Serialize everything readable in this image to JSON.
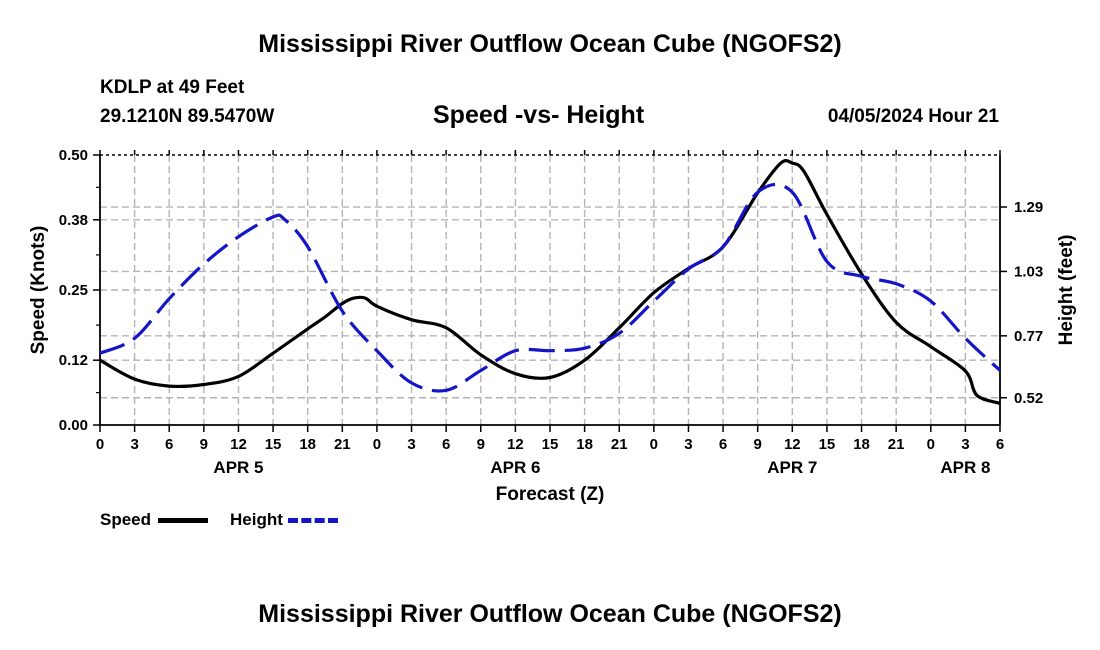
{
  "title": "Mississippi River Outflow Ocean Cube (NGOFS2)",
  "footer_title": "Mississippi River Outflow Ocean Cube (NGOFS2)",
  "station": {
    "name": "KDLP at 49 Feet",
    "coords": "29.1210N  89.5470W"
  },
  "subtitle": "Speed -vs- Height",
  "timestamp": "04/05/2024 Hour 21",
  "colors": {
    "speed": "#000000",
    "height": "#1515c8",
    "grid": "#b4b4b4"
  },
  "legend": {
    "speed_label": "Speed",
    "height_label": "Height"
  },
  "chart_data": {
    "type": "line",
    "title": "Speed -vs- Height",
    "xlabel": "Forecast (Z)",
    "ylabel": "Speed (Knots)",
    "y2label": "Height (feet)",
    "xlim": [
      0,
      78
    ],
    "ylim": [
      0,
      0.5
    ],
    "y2lim": [
      0.41,
      1.5
    ],
    "x_ticks": [
      0,
      3,
      6,
      9,
      12,
      15,
      18,
      21,
      24,
      27,
      30,
      33,
      36,
      39,
      42,
      45,
      48,
      51,
      54,
      57,
      60,
      63,
      66,
      69,
      72,
      75,
      78
    ],
    "x_tick_labels": [
      "0",
      "3",
      "6",
      "9",
      "12",
      "15",
      "18",
      "21",
      "0",
      "3",
      "6",
      "9",
      "12",
      "15",
      "18",
      "21",
      "0",
      "3",
      "6",
      "9",
      "12",
      "15",
      "18",
      "21",
      "0",
      "3",
      "6"
    ],
    "day_labels": [
      {
        "label": "APR 5",
        "x": 12
      },
      {
        "label": "APR 6",
        "x": 36
      },
      {
        "label": "APR 7",
        "x": 60
      },
      {
        "label": "APR 8",
        "x": 75
      }
    ],
    "y_ticks": [
      0.0,
      0.12,
      0.25,
      0.38,
      0.5
    ],
    "y_tick_labels": [
      "0.00",
      "0.12",
      "0.25",
      "0.38",
      "0.50"
    ],
    "y2_ticks": [
      0.52,
      0.77,
      1.03,
      1.29
    ],
    "y2_tick_labels": [
      "0.52",
      "0.77",
      "1.03",
      "1.29"
    ],
    "grid": true,
    "series": [
      {
        "name": "Speed",
        "axis": "left",
        "style": "solid",
        "x": [
          0,
          3,
          6,
          9,
          12,
          15,
          18,
          19.5,
          21,
          22,
          23,
          24,
          27,
          30,
          33,
          36,
          39,
          42,
          45,
          48,
          51,
          54,
          57,
          59,
          60,
          61,
          63,
          66,
          69,
          72,
          75,
          76,
          78
        ],
        "values": [
          0.12,
          0.085,
          0.072,
          0.075,
          0.09,
          0.133,
          0.178,
          0.2,
          0.225,
          0.235,
          0.235,
          0.22,
          0.195,
          0.18,
          0.13,
          0.095,
          0.088,
          0.12,
          0.18,
          0.245,
          0.29,
          0.33,
          0.43,
          0.485,
          0.485,
          0.47,
          0.39,
          0.28,
          0.19,
          0.145,
          0.1,
          0.055,
          0.04
        ]
      },
      {
        "name": "Height",
        "axis": "right",
        "style": "dashed",
        "x": [
          0,
          3,
          6,
          9,
          12,
          15,
          16,
          18,
          21,
          24,
          27,
          30,
          33,
          36,
          39,
          42,
          45,
          48,
          51,
          54,
          57,
          60,
          63,
          66,
          69,
          72,
          75,
          78
        ],
        "values": [
          0.7,
          0.76,
          0.92,
          1.06,
          1.17,
          1.25,
          1.24,
          1.13,
          0.87,
          0.71,
          0.58,
          0.55,
          0.63,
          0.71,
          0.71,
          0.72,
          0.78,
          0.91,
          1.04,
          1.13,
          1.35,
          1.35,
          1.07,
          1.01,
          0.98,
          0.91,
          0.76,
          0.63
        ]
      }
    ]
  }
}
